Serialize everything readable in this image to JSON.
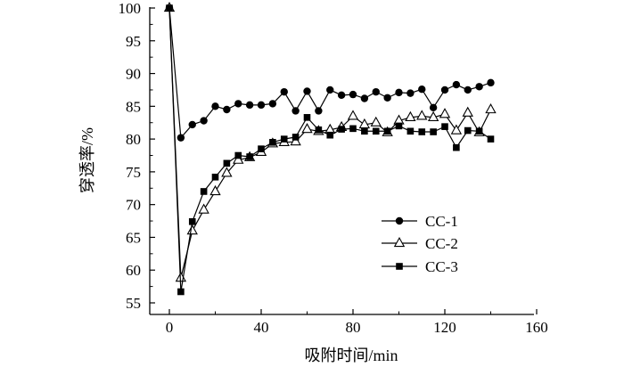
{
  "chart_data": {
    "type": "line",
    "xlabel": "吸附时间/min",
    "ylabel": "穿透率/%",
    "xlim": [
      0,
      160
    ],
    "ylim": [
      53,
      100
    ],
    "xticks": [
      0,
      40,
      80,
      120,
      160
    ],
    "yticks": [
      55,
      60,
      65,
      70,
      75,
      80,
      85,
      90,
      95,
      100
    ],
    "grid": false,
    "legend_position": "lower-right",
    "series": [
      {
        "name": "CC-1",
        "marker": "filled-circle",
        "x": [
          0,
          5,
          10,
          15,
          20,
          25,
          30,
          35,
          40,
          45,
          50,
          55,
          60,
          65,
          70,
          75,
          80,
          85,
          90,
          95,
          100,
          105,
          110,
          115,
          120,
          125,
          130,
          135,
          140
        ],
        "y": [
          100,
          80.2,
          82.2,
          82.8,
          85.0,
          84.5,
          85.4,
          85.2,
          85.2,
          85.4,
          87.2,
          84.3,
          87.3,
          84.3,
          87.5,
          86.7,
          86.8,
          86.2,
          87.2,
          86.3,
          87.1,
          87.0,
          87.6,
          84.8,
          87.5,
          88.3,
          87.5,
          88.0,
          88.6
        ]
      },
      {
        "name": "CC-2",
        "marker": "open-triangle",
        "x": [
          0,
          5,
          10,
          15,
          20,
          25,
          30,
          35,
          40,
          45,
          50,
          55,
          60,
          65,
          70,
          75,
          80,
          85,
          90,
          95,
          100,
          105,
          110,
          115,
          120,
          125,
          130,
          135,
          140
        ],
        "y": [
          100,
          58.8,
          66.0,
          69.2,
          72.0,
          74.8,
          76.8,
          77.2,
          78.0,
          79.3,
          79.5,
          79.6,
          81.5,
          81.2,
          81.4,
          81.8,
          83.5,
          82.2,
          82.5,
          81.0,
          82.8,
          83.3,
          83.5,
          83.3,
          83.8,
          81.3,
          84.0,
          81.0,
          84.5
        ]
      },
      {
        "name": "CC-3",
        "marker": "filled-square",
        "x": [
          0,
          5,
          10,
          15,
          20,
          25,
          30,
          35,
          40,
          45,
          50,
          55,
          60,
          65,
          70,
          75,
          80,
          85,
          90,
          95,
          100,
          105,
          110,
          115,
          120,
          125,
          130,
          135,
          140
        ],
        "y": [
          100,
          56.7,
          67.4,
          72.0,
          74.2,
          76.3,
          77.5,
          77.3,
          78.5,
          79.5,
          80.0,
          80.3,
          83.3,
          81.4,
          80.6,
          81.5,
          81.6,
          81.2,
          81.2,
          81.2,
          82.0,
          81.2,
          81.1,
          81.1,
          81.9,
          78.7,
          81.3,
          81.2,
          80.0
        ]
      }
    ]
  }
}
